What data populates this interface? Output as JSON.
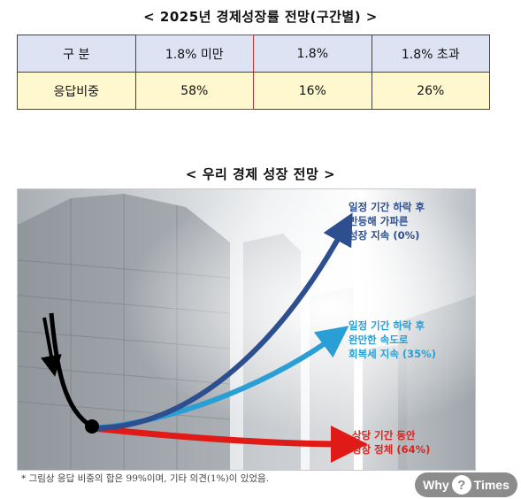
{
  "table_title": "< 2025년 경제성장률 전망(구간별) >",
  "table": {
    "header": [
      "구 분",
      "1.8% 미만",
      "1.8%",
      "1.8% 초과"
    ],
    "row": [
      "응답비중",
      "58%",
      "16%",
      "26%"
    ]
  },
  "chart_title": "< 우리 경제 성장 전망 >",
  "chart_data": {
    "type": "diagram",
    "title": "< 우리 경제 성장 전망 >",
    "scenarios": [
      {
        "label": "일정 기간 하락 후\n반등해 가파른\n성장 지속 (0%)",
        "share": 0,
        "color": "#2e4f8f"
      },
      {
        "label": "일정 기간 하락 후\n완만한 속도로\n회복세 지속 (35%)",
        "share": 35,
        "color": "#2a9fd6"
      },
      {
        "label": "상당 기간 동안\n성장 정체 (64%)",
        "share": 64,
        "color": "#d9231f"
      }
    ]
  },
  "note": "* 그림상 응답 비중의 합은 99%이며, 기타 의견(1%)이 있었음.",
  "logo": {
    "left": "Why",
    "mark": "?",
    "right": "Times"
  }
}
